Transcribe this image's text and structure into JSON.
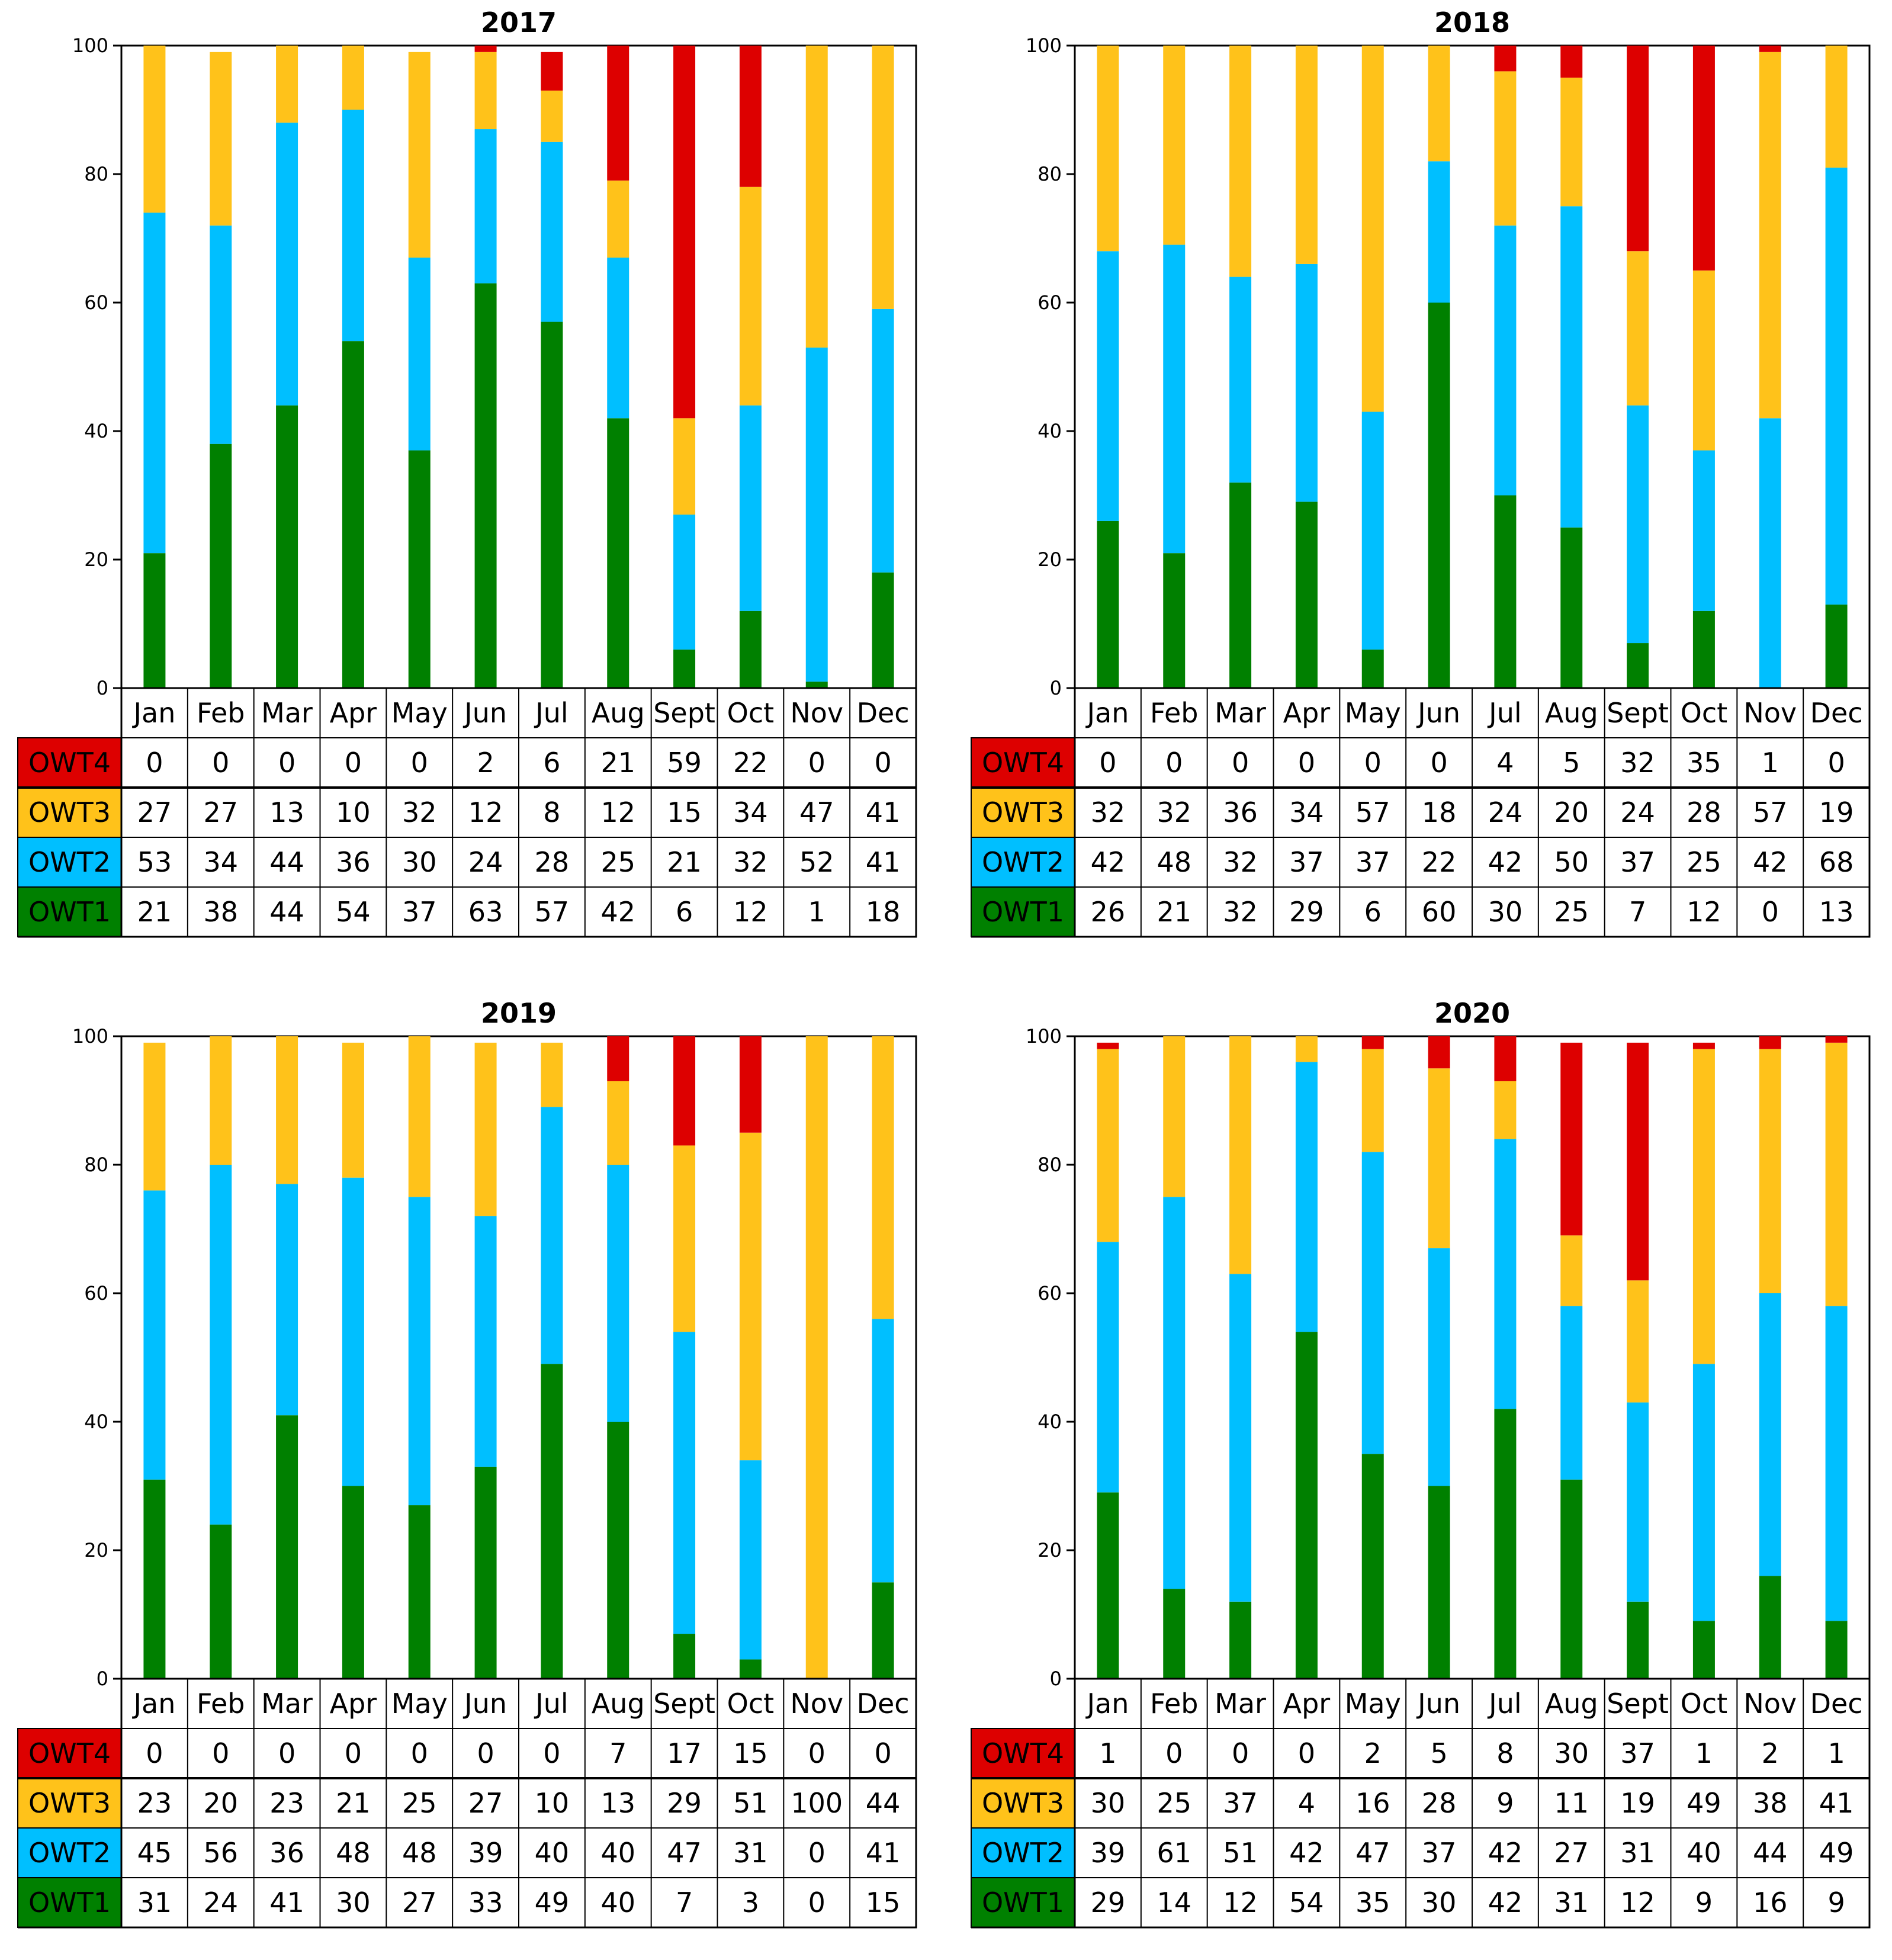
{
  "colors": {
    "OWT1": "#008000",
    "OWT2": "#00bfff",
    "OWT3": "#ffc21a",
    "OWT4": "#dd0000"
  },
  "chart_data": [
    {
      "type": "bar",
      "stacked": true,
      "title": "2017",
      "categories": [
        "Jan",
        "Feb",
        "Mar",
        "Apr",
        "May",
        "Jun",
        "Jul",
        "Aug",
        "Sept",
        "Oct",
        "Nov",
        "Dec"
      ],
      "ylim": [
        0,
        100
      ],
      "yticks": [
        0,
        20,
        40,
        60,
        80,
        100
      ],
      "series": [
        {
          "name": "OWT1",
          "values": [
            21,
            38,
            44,
            54,
            37,
            63,
            57,
            42,
            6,
            12,
            1,
            18
          ]
        },
        {
          "name": "OWT2",
          "values": [
            53,
            34,
            44,
            36,
            30,
            24,
            28,
            25,
            21,
            32,
            52,
            41
          ]
        },
        {
          "name": "OWT3",
          "values": [
            27,
            27,
            13,
            10,
            32,
            12,
            8,
            12,
            15,
            34,
            47,
            41
          ]
        },
        {
          "name": "OWT4",
          "values": [
            0,
            0,
            0,
            0,
            0,
            2,
            6,
            21,
            59,
            22,
            0,
            0
          ]
        }
      ],
      "table_rows": [
        "OWT4",
        "OWT3",
        "OWT2",
        "OWT1"
      ]
    },
    {
      "type": "bar",
      "stacked": true,
      "title": "2018",
      "categories": [
        "Jan",
        "Feb",
        "Mar",
        "Apr",
        "May",
        "Jun",
        "Jul",
        "Aug",
        "Sept",
        "Oct",
        "Nov",
        "Dec"
      ],
      "ylim": [
        0,
        100
      ],
      "yticks": [
        0,
        20,
        40,
        60,
        80,
        100
      ],
      "series": [
        {
          "name": "OWT1",
          "values": [
            26,
            21,
            32,
            29,
            6,
            60,
            30,
            25,
            7,
            12,
            0,
            13
          ]
        },
        {
          "name": "OWT2",
          "values": [
            42,
            48,
            32,
            37,
            37,
            22,
            42,
            50,
            37,
            25,
            42,
            68
          ]
        },
        {
          "name": "OWT3",
          "values": [
            32,
            32,
            36,
            34,
            57,
            18,
            24,
            20,
            24,
            28,
            57,
            19
          ]
        },
        {
          "name": "OWT4",
          "values": [
            0,
            0,
            0,
            0,
            0,
            0,
            4,
            5,
            32,
            35,
            1,
            0
          ]
        }
      ],
      "table_rows": [
        "OWT4",
        "OWT3",
        "OWT2",
        "OWT1"
      ]
    },
    {
      "type": "bar",
      "stacked": true,
      "title": "2019",
      "categories": [
        "Jan",
        "Feb",
        "Mar",
        "Apr",
        "May",
        "Jun",
        "Jul",
        "Aug",
        "Sept",
        "Oct",
        "Nov",
        "Dec"
      ],
      "ylim": [
        0,
        100
      ],
      "yticks": [
        0,
        20,
        40,
        60,
        80,
        100
      ],
      "series": [
        {
          "name": "OWT1",
          "values": [
            31,
            24,
            41,
            30,
            27,
            33,
            49,
            40,
            7,
            3,
            0,
            15
          ]
        },
        {
          "name": "OWT2",
          "values": [
            45,
            56,
            36,
            48,
            48,
            39,
            40,
            40,
            47,
            31,
            0,
            41
          ]
        },
        {
          "name": "OWT3",
          "values": [
            23,
            20,
            23,
            21,
            25,
            27,
            10,
            13,
            29,
            51,
            100,
            44
          ]
        },
        {
          "name": "OWT4",
          "values": [
            0,
            0,
            0,
            0,
            0,
            0,
            0,
            7,
            17,
            15,
            0,
            0
          ]
        }
      ],
      "table_rows": [
        "OWT4",
        "OWT3",
        "OWT2",
        "OWT1"
      ]
    },
    {
      "type": "bar",
      "stacked": true,
      "title": "2020",
      "categories": [
        "Jan",
        "Feb",
        "Mar",
        "Apr",
        "May",
        "Jun",
        "Jul",
        "Aug",
        "Sept",
        "Oct",
        "Nov",
        "Dec"
      ],
      "ylim": [
        0,
        100
      ],
      "yticks": [
        0,
        20,
        40,
        60,
        80,
        100
      ],
      "series": [
        {
          "name": "OWT1",
          "values": [
            29,
            14,
            12,
            54,
            35,
            30,
            42,
            31,
            12,
            9,
            16,
            9
          ]
        },
        {
          "name": "OWT2",
          "values": [
            39,
            61,
            51,
            42,
            47,
            37,
            42,
            27,
            31,
            40,
            44,
            49
          ]
        },
        {
          "name": "OWT3",
          "values": [
            30,
            25,
            37,
            4,
            16,
            28,
            9,
            11,
            19,
            49,
            38,
            41
          ]
        },
        {
          "name": "OWT4",
          "values": [
            1,
            0,
            0,
            0,
            2,
            5,
            8,
            30,
            37,
            1,
            2,
            1
          ]
        }
      ],
      "table_rows": [
        "OWT4",
        "OWT3",
        "OWT2",
        "OWT1"
      ]
    }
  ]
}
